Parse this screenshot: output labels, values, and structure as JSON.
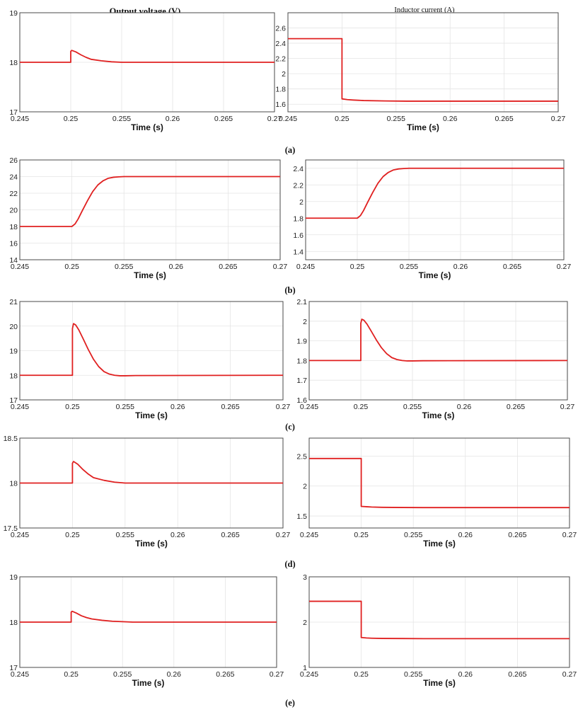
{
  "figure": {
    "title_left": "Output voltage (V)",
    "title_right": "Inductor current (A)",
    "subfigure_labels": [
      "(a)",
      "(b)",
      "(c)",
      "(d)",
      "(e)"
    ],
    "line_color": "#e02020"
  },
  "chart_data": [
    {
      "type": "line",
      "panel": "a-left",
      "xlabel": "Time (s)",
      "ylabel": "",
      "title": "Output voltage (V)",
      "xlim": [
        0.245,
        0.27
      ],
      "ylim": [
        17,
        19
      ],
      "xticks": [
        0.245,
        0.25,
        0.255,
        0.26,
        0.265,
        0.27
      ],
      "xtick_labels": [
        "0.245",
        "0.25",
        "0.255",
        "0.26",
        "0.265",
        "0.27"
      ],
      "yticks": [
        17,
        18,
        19
      ],
      "ytick_labels": [
        "17",
        "18",
        "19"
      ],
      "x": [
        0.245,
        0.25,
        0.25,
        0.2501,
        0.2505,
        0.251,
        0.2515,
        0.252,
        0.253,
        0.254,
        0.255,
        0.256,
        0.258,
        0.27
      ],
      "y": [
        18,
        18,
        18.22,
        18.24,
        18.21,
        18.15,
        18.1,
        18.06,
        18.03,
        18.01,
        18.0,
        18.0,
        18.0,
        18.0
      ]
    },
    {
      "type": "line",
      "panel": "a-right",
      "xlabel": "Time (s)",
      "ylabel": "",
      "title": "Inductor current (A)",
      "xlim": [
        0.245,
        0.27
      ],
      "ylim": [
        1.5,
        2.8
      ],
      "xticks": [
        0.245,
        0.25,
        0.255,
        0.26,
        0.265,
        0.27
      ],
      "xtick_labels": [
        "0.245",
        "0.25",
        "0.255",
        "0.26",
        "0.265",
        "0.27"
      ],
      "yticks": [
        1.6,
        1.8,
        2,
        2.2,
        2.4,
        2.6
      ],
      "ytick_labels": [
        "1.6",
        "1.8",
        "2",
        "2.2",
        "2.4",
        "2.6"
      ],
      "x": [
        0.245,
        0.25,
        0.25,
        0.2505,
        0.251,
        0.252,
        0.254,
        0.256,
        0.27
      ],
      "y": [
        2.46,
        2.46,
        1.67,
        1.66,
        1.655,
        1.648,
        1.643,
        1.64,
        1.64
      ]
    },
    {
      "type": "line",
      "panel": "b-left",
      "xlabel": "Time (s)",
      "ylabel": "",
      "xlim": [
        0.245,
        0.27
      ],
      "ylim": [
        14,
        26
      ],
      "xticks": [
        0.245,
        0.25,
        0.255,
        0.26,
        0.265,
        0.27
      ],
      "xtick_labels": [
        "0.245",
        "0.25",
        "0.255",
        "0.26",
        "0.265",
        "0.27"
      ],
      "yticks": [
        14,
        16,
        18,
        20,
        22,
        24,
        26
      ],
      "ytick_labels": [
        "14",
        "16",
        "18",
        "20",
        "22",
        "24",
        "26"
      ],
      "x": [
        0.245,
        0.25,
        0.2503,
        0.2506,
        0.251,
        0.2515,
        0.252,
        0.2525,
        0.253,
        0.2535,
        0.254,
        0.2545,
        0.255,
        0.256,
        0.27
      ],
      "y": [
        18,
        18,
        18.3,
        18.9,
        19.9,
        21.1,
        22.2,
        23.0,
        23.5,
        23.8,
        23.92,
        23.97,
        24.0,
        24.0,
        24.0
      ]
    },
    {
      "type": "line",
      "panel": "b-right",
      "xlabel": "Time (s)",
      "ylabel": "",
      "xlim": [
        0.245,
        0.27
      ],
      "ylim": [
        1.3,
        2.5
      ],
      "xticks": [
        0.245,
        0.25,
        0.255,
        0.26,
        0.265,
        0.27
      ],
      "xtick_labels": [
        "0.245",
        "0.25",
        "0.255",
        "0.26",
        "0.265",
        "0.27"
      ],
      "yticks": [
        1.4,
        1.6,
        1.8,
        2,
        2.2,
        2.4
      ],
      "ytick_labels": [
        "1.4",
        "1.6",
        "1.8",
        "2",
        "2.2",
        "2.4"
      ],
      "x": [
        0.245,
        0.25,
        0.2503,
        0.2506,
        0.251,
        0.2515,
        0.252,
        0.2525,
        0.253,
        0.2535,
        0.254,
        0.2545,
        0.255,
        0.256,
        0.27
      ],
      "y": [
        1.8,
        1.8,
        1.83,
        1.89,
        1.99,
        2.11,
        2.22,
        2.3,
        2.35,
        2.38,
        2.392,
        2.397,
        2.4,
        2.4,
        2.4
      ]
    },
    {
      "type": "line",
      "panel": "c-left",
      "xlabel": "Time (s)",
      "ylabel": "",
      "xlim": [
        0.245,
        0.27
      ],
      "ylim": [
        17,
        21
      ],
      "xticks": [
        0.245,
        0.25,
        0.255,
        0.26,
        0.265,
        0.27
      ],
      "xtick_labels": [
        "0.245",
        "0.25",
        "0.255",
        "0.26",
        "0.265",
        "0.27"
      ],
      "yticks": [
        17,
        18,
        19,
        20,
        21
      ],
      "ytick_labels": [
        "17",
        "18",
        "19",
        "20",
        "21"
      ],
      "x": [
        0.245,
        0.25,
        0.25,
        0.2501,
        0.2503,
        0.2506,
        0.251,
        0.2515,
        0.252,
        0.2525,
        0.253,
        0.2535,
        0.254,
        0.2545,
        0.255,
        0.256,
        0.27
      ],
      "y": [
        18,
        18,
        19.9,
        20.1,
        20.05,
        19.85,
        19.5,
        19.05,
        18.65,
        18.35,
        18.15,
        18.05,
        18.0,
        17.98,
        17.98,
        17.99,
        18.0
      ]
    },
    {
      "type": "line",
      "panel": "c-right",
      "xlabel": "Time (s)",
      "ylabel": "",
      "xlim": [
        0.245,
        0.27
      ],
      "ylim": [
        1.6,
        2.1
      ],
      "xticks": [
        0.245,
        0.25,
        0.255,
        0.26,
        0.265,
        0.27
      ],
      "xtick_labels": [
        "0.245",
        "0.25",
        "0.255",
        "0.26",
        "0.265",
        "0.27"
      ],
      "yticks": [
        1.6,
        1.7,
        1.8,
        1.9,
        2,
        2.1
      ],
      "ytick_labels": [
        "1.6",
        "1.7",
        "1.8",
        "1.9",
        "2",
        "2.1"
      ],
      "x": [
        0.245,
        0.25,
        0.25,
        0.2501,
        0.2503,
        0.2506,
        0.251,
        0.2515,
        0.252,
        0.2525,
        0.253,
        0.2535,
        0.254,
        0.2545,
        0.255,
        0.256,
        0.27
      ],
      "y": [
        1.8,
        1.8,
        1.99,
        2.01,
        2.005,
        1.985,
        1.95,
        1.905,
        1.865,
        1.835,
        1.815,
        1.805,
        1.8,
        1.798,
        1.798,
        1.799,
        1.8
      ]
    },
    {
      "type": "line",
      "panel": "d-left",
      "xlabel": "Time (s)",
      "ylabel": "",
      "xlim": [
        0.245,
        0.27
      ],
      "ylim": [
        17.5,
        18.5
      ],
      "xticks": [
        0.245,
        0.25,
        0.255,
        0.26,
        0.265,
        0.27
      ],
      "xtick_labels": [
        "0.245",
        "0.25",
        "0.255",
        "0.26",
        "0.265",
        "0.27"
      ],
      "yticks": [
        17.5,
        18,
        18.5
      ],
      "ytick_labels": [
        "17.5",
        "18",
        "18.5"
      ],
      "x": [
        0.245,
        0.25,
        0.25,
        0.2501,
        0.2505,
        0.251,
        0.2515,
        0.252,
        0.253,
        0.254,
        0.255,
        0.256,
        0.258,
        0.27
      ],
      "y": [
        18,
        18,
        18.22,
        18.24,
        18.21,
        18.15,
        18.1,
        18.06,
        18.03,
        18.01,
        18.0,
        18.0,
        18.0,
        18.0
      ]
    },
    {
      "type": "line",
      "panel": "d-right",
      "xlabel": "Time (s)",
      "ylabel": "",
      "xlim": [
        0.245,
        0.27
      ],
      "ylim": [
        1.3,
        2.8
      ],
      "xticks": [
        0.245,
        0.25,
        0.255,
        0.26,
        0.265,
        0.27
      ],
      "xtick_labels": [
        "0.245",
        "0.25",
        "0.255",
        "0.26",
        "0.265",
        "0.27"
      ],
      "yticks": [
        1.5,
        2,
        2.5
      ],
      "ytick_labels": [
        "1.5",
        "2",
        "2.5"
      ],
      "x": [
        0.245,
        0.25,
        0.25,
        0.2505,
        0.251,
        0.252,
        0.254,
        0.256,
        0.27
      ],
      "y": [
        2.46,
        2.46,
        1.66,
        1.655,
        1.65,
        1.645,
        1.642,
        1.64,
        1.64
      ]
    },
    {
      "type": "line",
      "panel": "e-left",
      "xlabel": "Time (s)",
      "ylabel": "",
      "xlim": [
        0.245,
        0.27
      ],
      "ylim": [
        17,
        19
      ],
      "xticks": [
        0.245,
        0.25,
        0.255,
        0.26,
        0.265,
        0.27
      ],
      "xtick_labels": [
        "0.245",
        "0.25",
        "0.255",
        "0.26",
        "0.265",
        "0.27"
      ],
      "yticks": [
        17,
        18,
        19
      ],
      "ytick_labels": [
        "17",
        "18",
        "19"
      ],
      "x": [
        0.245,
        0.25,
        0.25,
        0.2501,
        0.2505,
        0.251,
        0.2515,
        0.252,
        0.253,
        0.254,
        0.255,
        0.256,
        0.258,
        0.27
      ],
      "y": [
        18,
        18,
        18.22,
        18.24,
        18.2,
        18.14,
        18.1,
        18.07,
        18.04,
        18.02,
        18.01,
        18.0,
        18.0,
        18.0
      ]
    },
    {
      "type": "line",
      "panel": "e-right",
      "xlabel": "Time (s)",
      "ylabel": "",
      "xlim": [
        0.245,
        0.27
      ],
      "ylim": [
        1,
        3
      ],
      "xticks": [
        0.245,
        0.25,
        0.255,
        0.26,
        0.265,
        0.27
      ],
      "xtick_labels": [
        "0.245",
        "0.25",
        "0.255",
        "0.26",
        "0.265",
        "0.27"
      ],
      "yticks": [
        1,
        2,
        3
      ],
      "ytick_labels": [
        "1",
        "2",
        "3"
      ],
      "x": [
        0.245,
        0.25,
        0.25,
        0.2505,
        0.251,
        0.252,
        0.254,
        0.256,
        0.27
      ],
      "y": [
        2.46,
        2.46,
        1.66,
        1.65,
        1.645,
        1.64,
        1.638,
        1.635,
        1.635
      ]
    }
  ]
}
